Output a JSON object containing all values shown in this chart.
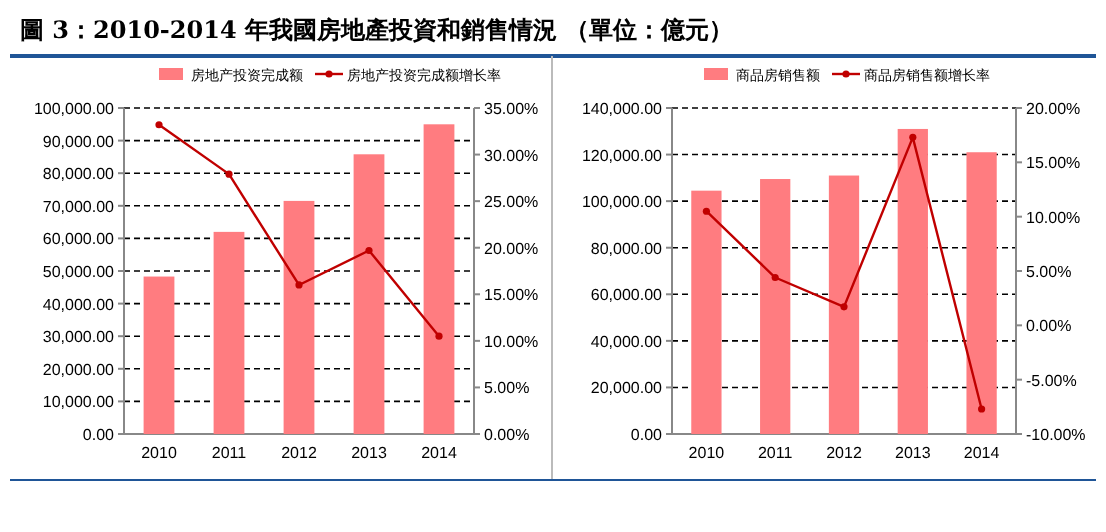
{
  "chart_data": [
    {
      "type": "bar",
      "title": "圖 3：2010-2014 年我國房地產投資和銷售情況 （單位：億元）",
      "categories": [
        "2010",
        "2011",
        "2012",
        "2013",
        "2014"
      ],
      "series": [
        {
          "name": "房地产投资完成额",
          "color": "#ff7c80",
          "values": [
            48300,
            62000,
            71500,
            85800,
            95000
          ]
        },
        {
          "name": "房地产投资完成额增长率",
          "color": "#c00000",
          "type": "line",
          "axis": "y2",
          "values": [
            33.2,
            27.9,
            16.0,
            19.7,
            10.5
          ]
        }
      ],
      "ylim": [
        0,
        100000
      ],
      "yticks": [
        {
          "value": 0,
          "label": "0.00"
        },
        {
          "value": 10000,
          "label": "10,000.00"
        },
        {
          "value": 20000,
          "label": "20,000.00"
        },
        {
          "value": 30000,
          "label": "30,000.00"
        },
        {
          "value": 40000,
          "label": "40,000.00"
        },
        {
          "value": 50000,
          "label": "50,000.00"
        },
        {
          "value": 60000,
          "label": "60,000.00"
        },
        {
          "value": 70000,
          "label": "70,000.00"
        },
        {
          "value": 80000,
          "label": "80,000.00"
        },
        {
          "value": 90000,
          "label": "90,000.00"
        },
        {
          "value": 100000,
          "label": "100,000.00"
        }
      ],
      "y2lim": [
        0,
        35
      ],
      "y2ticks": [
        {
          "value": 0,
          "label": "0.00%"
        },
        {
          "value": 5,
          "label": "5.00%"
        },
        {
          "value": 10,
          "label": "10.00%"
        },
        {
          "value": 15,
          "label": "15.00%"
        },
        {
          "value": 20,
          "label": "20.00%"
        },
        {
          "value": 25,
          "label": "25.00%"
        },
        {
          "value": 30,
          "label": "30.00%"
        },
        {
          "value": 35,
          "label": "35.00%"
        }
      ],
      "grid": "y",
      "legend": "top",
      "marker": "circle",
      "line_style": "solid"
    },
    {
      "type": "bar",
      "categories": [
        "2010",
        "2011",
        "2012",
        "2013",
        "2014"
      ],
      "series": [
        {
          "name": "商品房销售额",
          "color": "#ff7c80",
          "values": [
            104500,
            109500,
            111000,
            131000,
            121000
          ]
        },
        {
          "name": "商品房销售额增长率",
          "color": "#c00000",
          "type": "line",
          "axis": "y2",
          "values": [
            10.5,
            4.4,
            1.7,
            17.3,
            -7.7
          ]
        }
      ],
      "ylim": [
        0,
        140000
      ],
      "yticks": [
        {
          "value": 0,
          "label": "0.00"
        },
        {
          "value": 20000,
          "label": "20,000.00"
        },
        {
          "value": 40000,
          "label": "40,000.00"
        },
        {
          "value": 60000,
          "label": "60,000.00"
        },
        {
          "value": 80000,
          "label": "80,000.00"
        },
        {
          "value": 100000,
          "label": "100,000.00"
        },
        {
          "value": 120000,
          "label": "120,000.00"
        },
        {
          "value": 140000,
          "label": "140,000.00"
        }
      ],
      "y2lim": [
        -10,
        20
      ],
      "y2ticks": [
        {
          "value": -10,
          "label": "-10.00%"
        },
        {
          "value": -5,
          "label": "-5.00%"
        },
        {
          "value": 0,
          "label": "0.00%"
        },
        {
          "value": 5,
          "label": "5.00%"
        },
        {
          "value": 10,
          "label": "10.00%"
        },
        {
          "value": 15,
          "label": "15.00%"
        },
        {
          "value": 20,
          "label": "20.00%"
        }
      ],
      "grid": "y",
      "legend": "top",
      "marker": "circle",
      "line_style": "solid"
    }
  ]
}
